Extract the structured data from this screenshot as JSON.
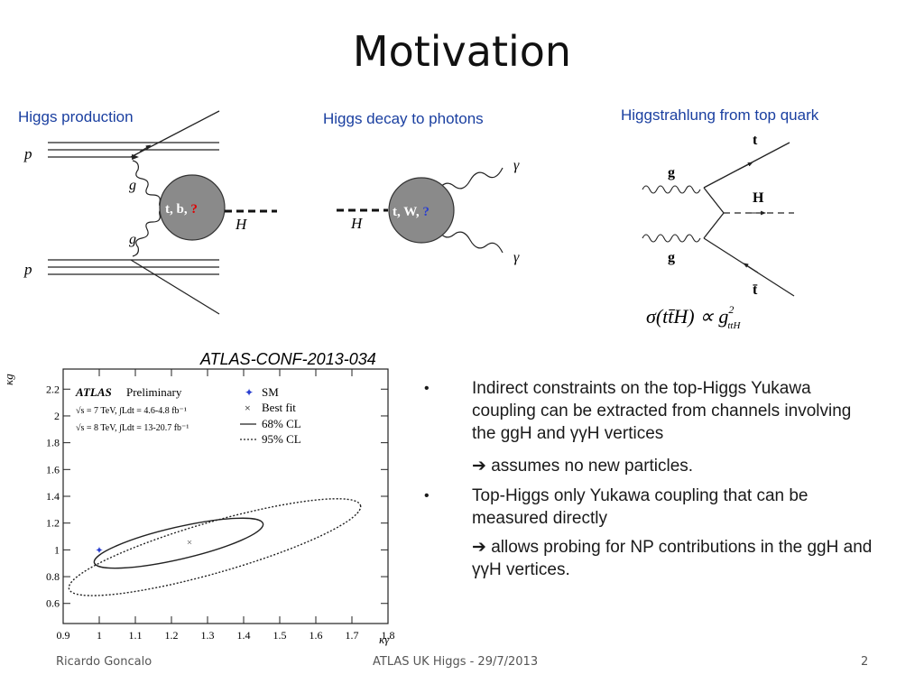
{
  "slide": {
    "title": "Motivation",
    "footer": {
      "author": "Ricardo Goncalo",
      "event": "ATLAS UK Higgs - 29/7/2013",
      "page": "2"
    }
  },
  "diagrams": {
    "production": {
      "title": "Higgs production",
      "p_top": "p",
      "p_bottom": "p",
      "g_top": "g",
      "g_bottom": "g",
      "blob": "t, b, ",
      "blob_q": "?",
      "H": "H"
    },
    "decay": {
      "title": "Higgs decay to photons",
      "blob": "t, W, ",
      "blob_q": "?",
      "H": "H",
      "gamma_top": "γ",
      "gamma_bottom": "γ"
    },
    "tth": {
      "title": "Higgstrahlung from top quark",
      "t": "t",
      "tbar": "t̄",
      "H": "H",
      "g_top": "g",
      "g_bottom": "g",
      "formula_sigma": "σ(tt̄H) ∝ g",
      "formula_sup": "2",
      "formula_sub": "ttH"
    }
  },
  "plot": {
    "conf": "ATLAS-CONF-2013-034",
    "atlas": "ATLAS",
    "prelim": "Preliminary",
    "lumi7": "√s = 7 TeV, ∫Ldt = 4.6-4.8 fb⁻¹",
    "lumi8": "√s = 8 TeV, ∫Ldt = 13-20.7 fb⁻¹",
    "legend": {
      "sm": "SM",
      "best": "Best fit",
      "cl68": "68% CL",
      "cl95": "95% CL"
    }
  },
  "chart_data": {
    "type": "scatter",
    "xlabel": "κγ",
    "ylabel": "κg",
    "xlim": [
      0.9,
      1.8
    ],
    "ylim": [
      0.45,
      2.35
    ],
    "x_ticks": [
      "0.9",
      "1",
      "1.1",
      "1.2",
      "1.3",
      "1.4",
      "1.5",
      "1.6",
      "1.7",
      "1.8"
    ],
    "y_ticks": [
      "0.6",
      "0.8",
      "1",
      "1.2",
      "1.4",
      "1.6",
      "1.8",
      "2",
      "2.2"
    ],
    "points": [
      {
        "name": "SM",
        "x": 1.0,
        "y": 1.0,
        "color": "#2a3fd0"
      },
      {
        "name": "Best fit",
        "x": 1.25,
        "y": 1.06,
        "color": "#555555"
      }
    ],
    "contours": [
      {
        "name": "68% CL",
        "style": "solid",
        "cx": 1.22,
        "cy": 1.05,
        "rx": 0.24,
        "ry": 0.12,
        "angle_deg": -13
      },
      {
        "name": "95% CL",
        "style": "dashed",
        "cx": 1.32,
        "cy": 1.02,
        "rx": 0.42,
        "ry": 0.19,
        "angle_deg": -16
      }
    ]
  },
  "bullets": [
    {
      "text": "Indirect constraints on the top-Higgs Yukawa coupling can be extracted from channels involving the ggH and γγH vertices",
      "sub": "assumes no new particles."
    },
    {
      "text": "Top-Higgs only Yukawa coupling that can be measured directly",
      "sub": "allows probing for NP contributions in the ggH and γγH vertices."
    }
  ],
  "colors": {
    "title_blue": "#1a3fa0",
    "blob_gray": "#8a8a8a",
    "red_q": "#e00000",
    "blue_q": "#2a3fd0"
  }
}
